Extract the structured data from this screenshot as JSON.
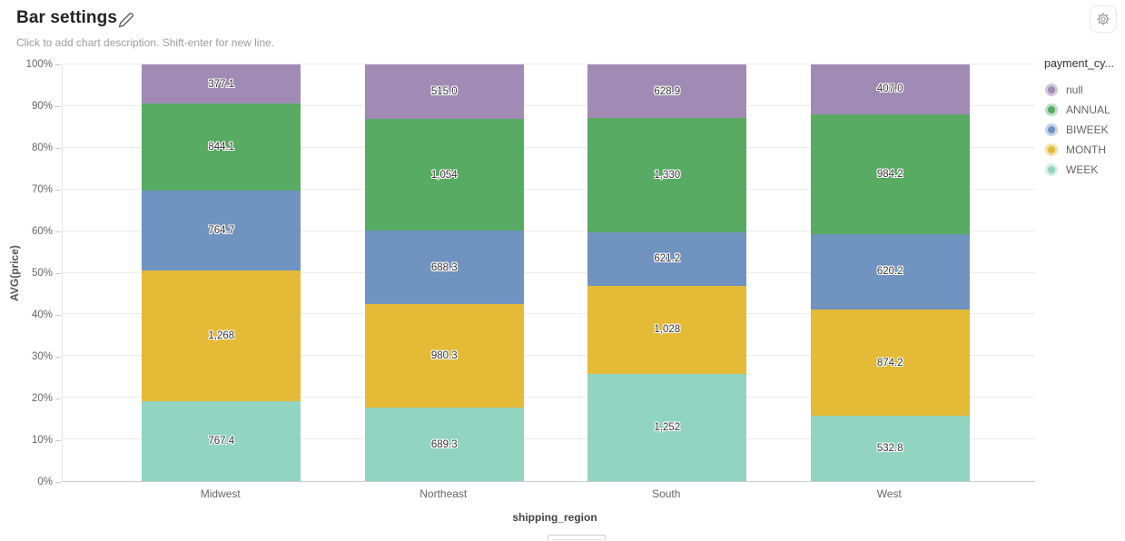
{
  "header": {
    "title": "Bar settings",
    "description_placeholder": "Click to add chart description. Shift-enter for new line.",
    "edit_icon": "pencil-icon",
    "settings_icon": "gear-icon"
  },
  "legend": {
    "title": "payment_cy...",
    "items": [
      {
        "label": "null",
        "color": "#a18bb4",
        "ring": "#d2c8de"
      },
      {
        "label": "ANNUAL",
        "color": "#57ab62",
        "ring": "#bde0c2"
      },
      {
        "label": "BIWEEK",
        "color": "#7093c0",
        "ring": "#c8d5e9"
      },
      {
        "label": "MONTH",
        "color": "#e4ba37",
        "ring": "#f3e2ab"
      },
      {
        "label": "WEEK",
        "color": "#91d4c0",
        "ring": "#d7efe8"
      }
    ]
  },
  "chart_data": {
    "type": "bar",
    "stacked": true,
    "normalized": "percent-of-total",
    "title": "Bar settings",
    "xlabel": "shipping_region",
    "ylabel": "AVG(price)",
    "categories": [
      "Midwest",
      "Northeast",
      "South",
      "West"
    ],
    "series": [
      {
        "name": "null",
        "color": "#a18bb4",
        "values": [
          377.1,
          515.0,
          628.9,
          407.0
        ],
        "labels": [
          "377.1",
          "515.0",
          "628.9",
          "407.0"
        ]
      },
      {
        "name": "ANNUAL",
        "color": "#57ab62",
        "values": [
          844.1,
          1054,
          1330,
          984.2
        ],
        "labels": [
          "844.1",
          "1,054",
          "1,330",
          "984.2"
        ]
      },
      {
        "name": "BIWEEK",
        "color": "#7093c0",
        "values": [
          764.7,
          688.3,
          621.2,
          620.2
        ],
        "labels": [
          "764.7",
          "688.3",
          "621.2",
          "620.2"
        ]
      },
      {
        "name": "MONTH",
        "color": "#e4ba37",
        "values": [
          1268,
          980.3,
          1028,
          874.2
        ],
        "labels": [
          "1,268",
          "980.3",
          "1,028",
          "874.2"
        ]
      },
      {
        "name": "WEEK",
        "color": "#91d4c0",
        "values": [
          767.4,
          689.3,
          1252,
          532.8
        ],
        "labels": [
          "767.4",
          "689.3",
          "1,252",
          "532.8"
        ]
      }
    ],
    "stack_order_bottom_to_top": [
      "WEEK",
      "MONTH",
      "BIWEEK",
      "ANNUAL",
      "null"
    ],
    "y_ticks": [
      "0%",
      "10%",
      "20%",
      "30%",
      "40%",
      "50%",
      "60%",
      "70%",
      "80%",
      "90%",
      "100%"
    ],
    "ylim": [
      0,
      100
    ],
    "grid": true,
    "legend_position": "right"
  }
}
